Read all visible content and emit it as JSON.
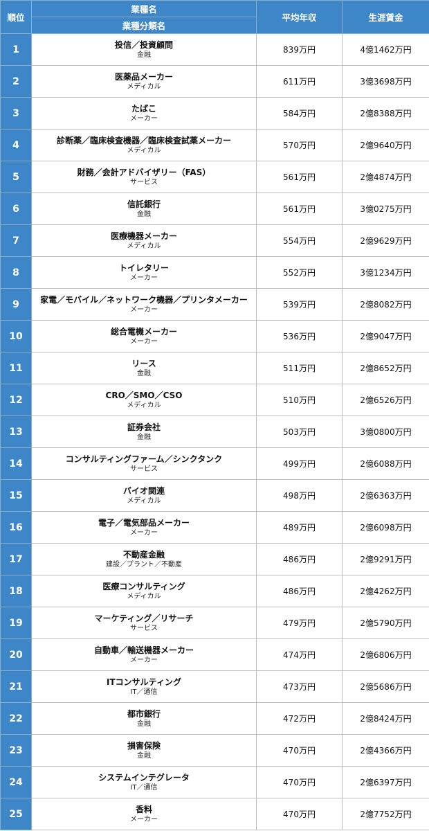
{
  "header": {
    "rank": "順位",
    "industry": "業種名",
    "category": "業種分類名",
    "avg_income": "平均年収",
    "lifetime": "生涯賃金"
  },
  "rows": [
    {
      "rank": "1",
      "name": "投信／投資顧問",
      "category": "金融",
      "avg": "839万円",
      "lifetime": "4億1462万円"
    },
    {
      "rank": "2",
      "name": "医薬品メーカー",
      "category": "メディカル",
      "avg": "611万円",
      "lifetime": "3億3698万円"
    },
    {
      "rank": "3",
      "name": "たばこ",
      "category": "メーカー",
      "avg": "584万円",
      "lifetime": "2億8388万円"
    },
    {
      "rank": "4",
      "name": "診断薬／臨床検査機器／臨床検査試薬メーカー",
      "category": "メディカル",
      "avg": "570万円",
      "lifetime": "2億9640万円"
    },
    {
      "rank": "5",
      "name": "財務／会計アドバイザリー（FAS）",
      "category": "サービス",
      "avg": "561万円",
      "lifetime": "2億4874万円"
    },
    {
      "rank": "6",
      "name": "信託銀行",
      "category": "金融",
      "avg": "561万円",
      "lifetime": "3億0275万円"
    },
    {
      "rank": "7",
      "name": "医療機器メーカー",
      "category": "メディカル",
      "avg": "554万円",
      "lifetime": "2億9629万円"
    },
    {
      "rank": "8",
      "name": "トイレタリー",
      "category": "メーカー",
      "avg": "552万円",
      "lifetime": "3億1234万円"
    },
    {
      "rank": "9",
      "name": "家電／モバイル／ネットワーク機器／プリンタメーカー",
      "category": "メーカー",
      "avg": "539万円",
      "lifetime": "2億8082万円"
    },
    {
      "rank": "10",
      "name": "総合電機メーカー",
      "category": "メーカー",
      "avg": "536万円",
      "lifetime": "2億9047万円"
    },
    {
      "rank": "11",
      "name": "リース",
      "category": "金融",
      "avg": "511万円",
      "lifetime": "2億8652万円"
    },
    {
      "rank": "12",
      "name": "CRO／SMO／CSO",
      "category": "メディカル",
      "avg": "510万円",
      "lifetime": "2億6526万円"
    },
    {
      "rank": "13",
      "name": "証券会社",
      "category": "金融",
      "avg": "503万円",
      "lifetime": "3億0800万円"
    },
    {
      "rank": "14",
      "name": "コンサルティングファーム／シンクタンク",
      "category": "サービス",
      "avg": "499万円",
      "lifetime": "2億6088万円"
    },
    {
      "rank": "15",
      "name": "バイオ関連",
      "category": "メディカル",
      "avg": "498万円",
      "lifetime": "2億6363万円"
    },
    {
      "rank": "16",
      "name": "電子／電気部品メーカー",
      "category": "メーカー",
      "avg": "489万円",
      "lifetime": "2億6098万円"
    },
    {
      "rank": "17",
      "name": "不動産金融",
      "category": "建設／プラント／不動産",
      "avg": "486万円",
      "lifetime": "2億9291万円"
    },
    {
      "rank": "18",
      "name": "医療コンサルティング",
      "category": "メディカル",
      "avg": "486万円",
      "lifetime": "2億4262万円"
    },
    {
      "rank": "19",
      "name": "マーケティング／リサーチ",
      "category": "サービス",
      "avg": "479万円",
      "lifetime": "2億5790万円"
    },
    {
      "rank": "20",
      "name": "自動車／輸送機器メーカー",
      "category": "メーカー",
      "avg": "474万円",
      "lifetime": "2億6806万円"
    },
    {
      "rank": "21",
      "name": "ITコンサルティング",
      "category": "IT／通信",
      "avg": "473万円",
      "lifetime": "2億5686万円"
    },
    {
      "rank": "22",
      "name": "都市銀行",
      "category": "金融",
      "avg": "472万円",
      "lifetime": "2億8424万円"
    },
    {
      "rank": "23",
      "name": "損害保険",
      "category": "金融",
      "avg": "470万円",
      "lifetime": "2億4366万円"
    },
    {
      "rank": "24",
      "name": "システムインテグレータ",
      "category": "IT／通信",
      "avg": "470万円",
      "lifetime": "2億6397万円"
    },
    {
      "rank": "25",
      "name": "香料",
      "category": "メーカー",
      "avg": "470万円",
      "lifetime": "2億7752万円"
    }
  ]
}
